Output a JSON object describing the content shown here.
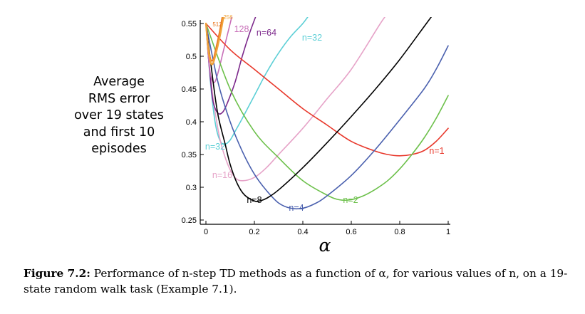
{
  "chart_data": {
    "type": "line",
    "title": "",
    "xlabel": "α",
    "ylabel_lines": [
      "Average",
      "RMS error",
      "over 19 states",
      "and first 10",
      "episodes"
    ],
    "xlim": [
      0,
      1
    ],
    "ylim": [
      0.25,
      0.55
    ],
    "x_ticks": [
      0,
      0.2,
      0.4,
      0.6,
      0.8,
      1
    ],
    "x_tick_labels": [
      "0",
      "0.2",
      "0.4",
      "0.6",
      "0.8",
      "1"
    ],
    "y_ticks": [
      0.25,
      0.3,
      0.35,
      0.4,
      0.45,
      0.5,
      0.55
    ],
    "y_tick_labels": [
      "0.25",
      "0.3",
      "0.35",
      "0.4",
      "0.45",
      "0.5",
      "0.55"
    ],
    "grid": false,
    "legend": "none (series labeled inline)",
    "series": [
      {
        "name": "n=1",
        "color": "#e8382b",
        "x": [
          0,
          0.1,
          0.2,
          0.3,
          0.4,
          0.5,
          0.6,
          0.7,
          0.75,
          0.8,
          0.85,
          0.9,
          0.95,
          1.0
        ],
        "y": [
          0.55,
          0.51,
          0.48,
          0.45,
          0.42,
          0.395,
          0.37,
          0.355,
          0.35,
          0.348,
          0.35,
          0.356,
          0.37,
          0.39
        ]
      },
      {
        "name": "n=2",
        "color": "#6cc04a",
        "x": [
          0,
          0.1,
          0.2,
          0.3,
          0.4,
          0.5,
          0.55,
          0.6,
          0.65,
          0.7,
          0.75,
          0.8,
          0.85,
          0.9,
          0.95,
          1.0
        ],
        "y": [
          0.55,
          0.45,
          0.385,
          0.345,
          0.31,
          0.288,
          0.281,
          0.281,
          0.287,
          0.297,
          0.31,
          0.328,
          0.35,
          0.375,
          0.405,
          0.44
        ]
      },
      {
        "name": "n=4",
        "color": "#4a60ae",
        "x": [
          0,
          0.05,
          0.1,
          0.15,
          0.2,
          0.25,
          0.3,
          0.35,
          0.4,
          0.45,
          0.5,
          0.6,
          0.7,
          0.8,
          0.9,
          0.95,
          1.0
        ],
        "y": [
          0.55,
          0.46,
          0.4,
          0.355,
          0.32,
          0.295,
          0.276,
          0.268,
          0.268,
          0.275,
          0.287,
          0.318,
          0.358,
          0.403,
          0.45,
          0.48,
          0.516
        ]
      },
      {
        "name": "n=8",
        "color": "#000000",
        "x": [
          0,
          0.03,
          0.05,
          0.08,
          0.1,
          0.13,
          0.16,
          0.2,
          0.22,
          0.25,
          0.3,
          0.4,
          0.5,
          0.6,
          0.7,
          0.8,
          0.9,
          0.94
        ],
        "y": [
          0.55,
          0.46,
          0.41,
          0.365,
          0.335,
          0.305,
          0.288,
          0.279,
          0.279,
          0.283,
          0.296,
          0.33,
          0.368,
          0.408,
          0.45,
          0.495,
          0.545,
          0.565
        ]
      },
      {
        "name": "n=16",
        "color": "#e6a3c8",
        "x": [
          0,
          0.02,
          0.04,
          0.06,
          0.09,
          0.12,
          0.15,
          0.2,
          0.25,
          0.3,
          0.4,
          0.5,
          0.6,
          0.72,
          0.75
        ],
        "y": [
          0.55,
          0.465,
          0.41,
          0.37,
          0.335,
          0.315,
          0.31,
          0.315,
          0.33,
          0.35,
          0.39,
          0.435,
          0.48,
          0.55,
          0.565
        ]
      },
      {
        "name": "n=32",
        "color": "#5ccfd6",
        "x": [
          0,
          0.02,
          0.04,
          0.06,
          0.08,
          0.1,
          0.12,
          0.15,
          0.2,
          0.25,
          0.3,
          0.35,
          0.4,
          0.43
        ],
        "y": [
          0.55,
          0.455,
          0.395,
          0.37,
          0.366,
          0.372,
          0.385,
          0.405,
          0.44,
          0.475,
          0.505,
          0.53,
          0.55,
          0.565
        ]
      },
      {
        "name": "n=64",
        "color": "#7d2a8c",
        "x": [
          0,
          0.01,
          0.02,
          0.03,
          0.05,
          0.07,
          0.09,
          0.12,
          0.15,
          0.18,
          0.21
        ],
        "y": [
          0.55,
          0.5,
          0.46,
          0.43,
          0.413,
          0.415,
          0.43,
          0.46,
          0.5,
          0.535,
          0.565
        ]
      },
      {
        "name": "128",
        "color": "#c86fb8",
        "x": [
          0,
          0.01,
          0.02,
          0.035,
          0.05,
          0.07,
          0.09,
          0.11
        ],
        "y": [
          0.55,
          0.5,
          0.47,
          0.46,
          0.475,
          0.505,
          0.535,
          0.565
        ]
      },
      {
        "name": "256",
        "color": "#f0a23a",
        "x": [
          0,
          0.01,
          0.02,
          0.03,
          0.045,
          0.06,
          0.075
        ],
        "y": [
          0.55,
          0.51,
          0.49,
          0.49,
          0.51,
          0.535,
          0.565
        ]
      },
      {
        "name": "512",
        "color": "#e8761e",
        "x": [
          0,
          0.01,
          0.02,
          0.03,
          0.04,
          0.055,
          0.07
        ],
        "y": [
          0.55,
          0.515,
          0.495,
          0.495,
          0.51,
          0.535,
          0.565
        ]
      }
    ]
  },
  "caption": {
    "label": "Figure 7.2:",
    "text": "Performance of n-step TD methods as a function of α, for various values of n, on a 19-state random walk task (Example 7.1)."
  }
}
